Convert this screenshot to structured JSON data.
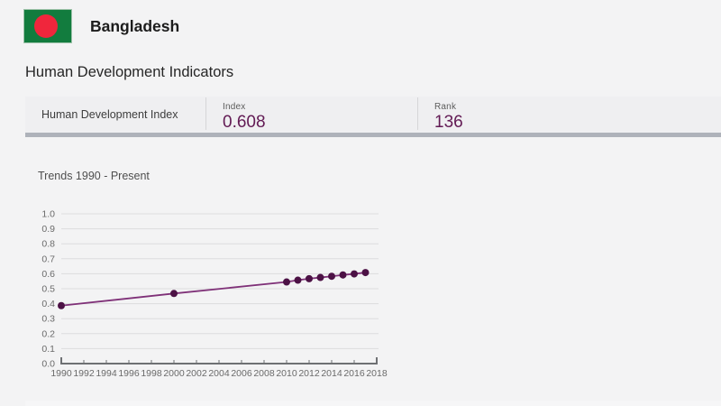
{
  "header": {
    "country": "Bangladesh",
    "flag_name": "bangladesh-flag",
    "flag_colors": {
      "green": "#127c3e",
      "red": "#f0263c"
    }
  },
  "section_title": "Human Development Indicators",
  "indicator_row": {
    "label": "Human Development Index",
    "index_label": "Index",
    "index_value": "0.608",
    "rank_label": "Rank",
    "rank_value": "136"
  },
  "trends": {
    "title": "Trends 1990 - Present"
  },
  "colors": {
    "accent_purple": "#621a54",
    "trend_line": "#7f3178",
    "trend_dot": "#4c1145",
    "grid_line": "#dcdcde",
    "axis_line": "#6e7073",
    "axis_text": "#6a6a6a",
    "row_border": "#aeb2ba"
  },
  "chart_data": {
    "type": "line",
    "title": "Trends 1990 - Present",
    "x": [
      1990,
      2000,
      2010,
      2011,
      2012,
      2013,
      2014,
      2015,
      2016,
      2017
    ],
    "series": [
      {
        "name": "Human Development Index",
        "values": [
          0.387,
          0.468,
          0.545,
          0.557,
          0.567,
          0.575,
          0.583,
          0.592,
          0.599,
          0.608
        ]
      }
    ],
    "xlim": [
      1990,
      2018
    ],
    "ylim": [
      0.0,
      1.0
    ],
    "x_ticks": [
      1990,
      1992,
      1994,
      1996,
      1998,
      2000,
      2002,
      2004,
      2006,
      2008,
      2010,
      2012,
      2014,
      2016,
      2018
    ],
    "y_ticks": [
      "0.0",
      "0.1",
      "0.2",
      "0.3",
      "0.4",
      "0.5",
      "0.6",
      "0.7",
      "0.8",
      "0.9",
      "1.0"
    ],
    "grid": "horizontal",
    "legend": "none"
  }
}
